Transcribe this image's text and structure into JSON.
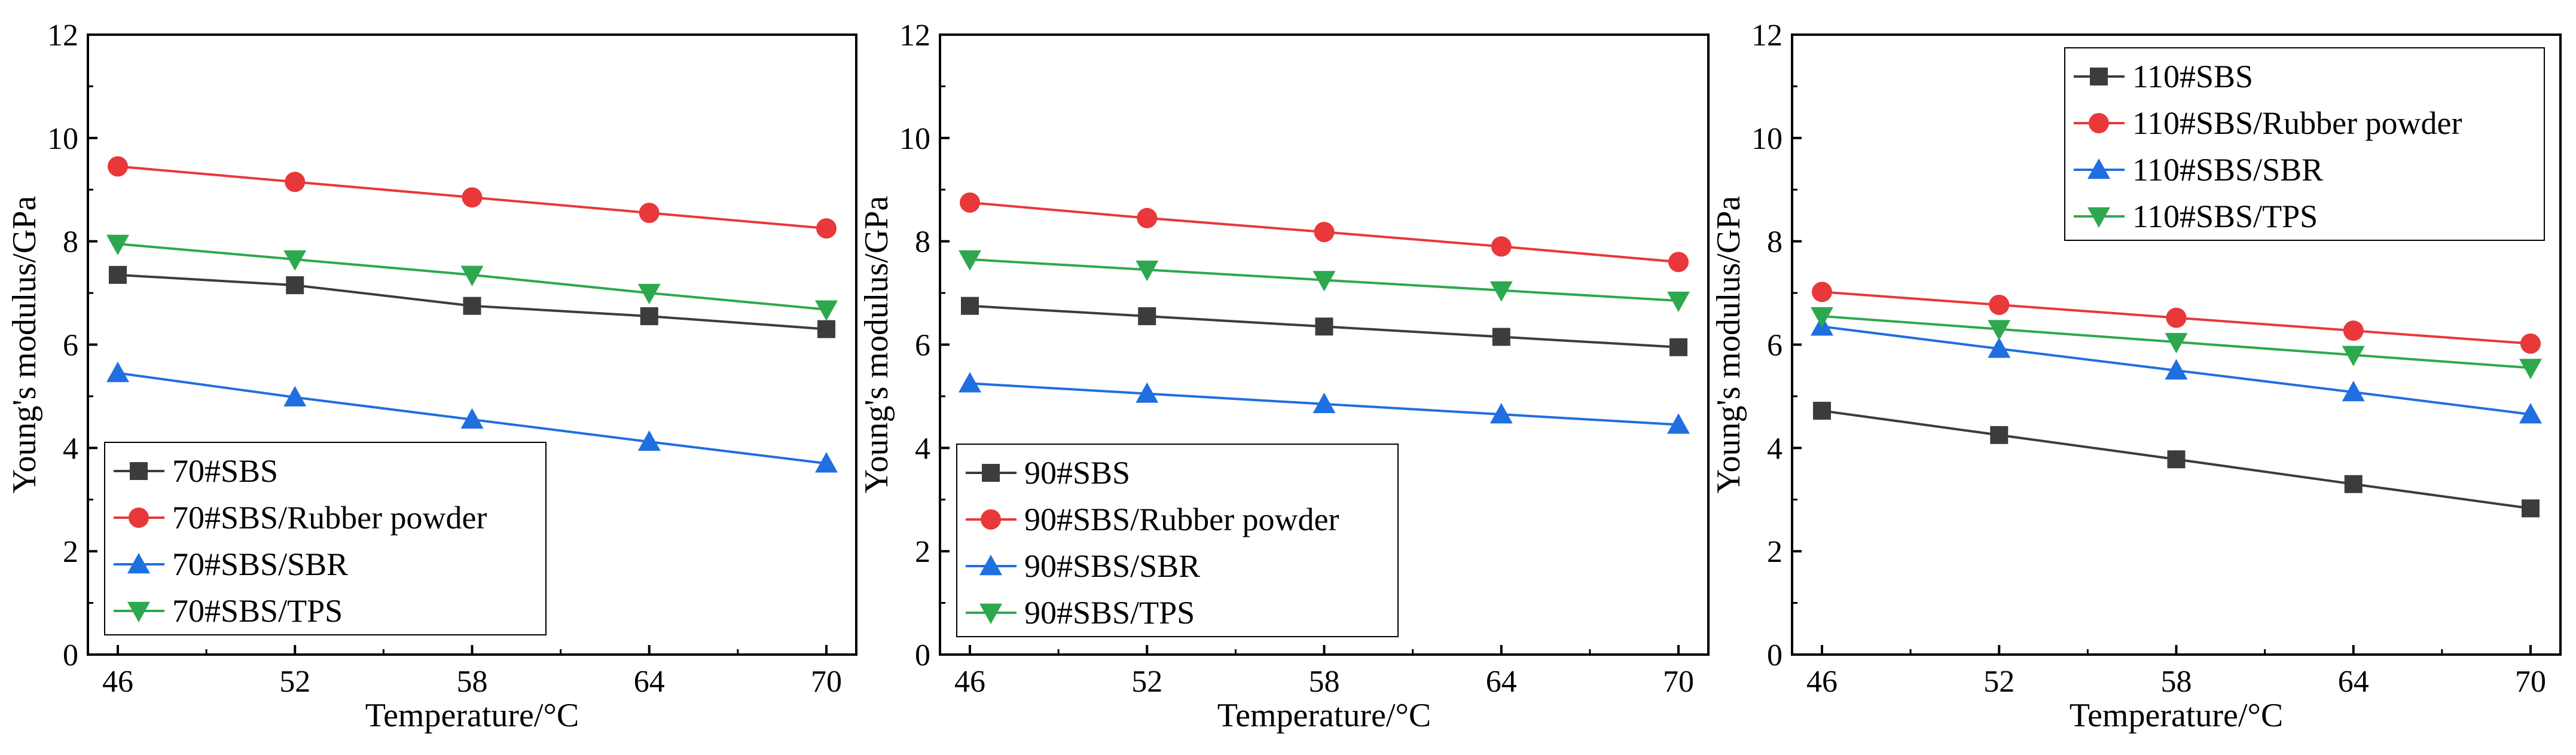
{
  "chart_data": [
    {
      "type": "line",
      "xlabel": "Temperature/°C",
      "ylabel": "Young's modulus/GPa",
      "xlim": [
        46,
        70
      ],
      "ylim": [
        0,
        12
      ],
      "x_ticks": [
        46,
        52,
        58,
        64,
        70
      ],
      "y_ticks": [
        0,
        2,
        4,
        6,
        8,
        10,
        12
      ],
      "legend_position": "bottom-left",
      "x": [
        46,
        52,
        58,
        64,
        70
      ],
      "series": [
        {
          "name": "70#SBS",
          "color": "#3c3c3c",
          "marker": "square",
          "values": [
            7.35,
            7.15,
            6.75,
            6.55,
            6.3
          ]
        },
        {
          "name": "70#SBS/Rubber powder",
          "color": "#e8383a",
          "marker": "circle",
          "values": [
            9.45,
            9.15,
            8.85,
            8.55,
            8.25
          ]
        },
        {
          "name": "70#SBS/SBR",
          "color": "#1f6fe0",
          "marker": "triangle-up",
          "values": [
            5.45,
            4.98,
            4.55,
            4.12,
            3.7
          ]
        },
        {
          "name": "70#SBS/TPS",
          "color": "#2ea84e",
          "marker": "triangle-down",
          "values": [
            7.95,
            7.65,
            7.35,
            7.0,
            6.68
          ]
        }
      ]
    },
    {
      "type": "line",
      "xlabel": "Temperature/°C",
      "ylabel": "Young's modulus/GPa",
      "xlim": [
        46,
        70
      ],
      "ylim": [
        0,
        12
      ],
      "x_ticks": [
        46,
        52,
        58,
        64,
        70
      ],
      "y_ticks": [
        0,
        2,
        4,
        6,
        8,
        10,
        12
      ],
      "legend_position": "bottom-left",
      "x": [
        46,
        52,
        58,
        64,
        70
      ],
      "series": [
        {
          "name": "90#SBS",
          "color": "#3c3c3c",
          "marker": "square",
          "values": [
            6.75,
            6.55,
            6.35,
            6.15,
            5.95
          ]
        },
        {
          "name": "90#SBS/Rubber powder",
          "color": "#e8383a",
          "marker": "circle",
          "values": [
            8.75,
            8.45,
            8.18,
            7.9,
            7.6
          ]
        },
        {
          "name": "90#SBS/SBR",
          "color": "#1f6fe0",
          "marker": "triangle-up",
          "values": [
            5.25,
            5.05,
            4.85,
            4.65,
            4.45
          ]
        },
        {
          "name": "90#SBS/TPS",
          "color": "#2ea84e",
          "marker": "triangle-down",
          "values": [
            7.65,
            7.45,
            7.25,
            7.05,
            6.85
          ]
        }
      ]
    },
    {
      "type": "line",
      "xlabel": "Temperature/°C",
      "ylabel": "Young's modulus/GPa",
      "xlim": [
        46,
        70
      ],
      "ylim": [
        0,
        12
      ],
      "x_ticks": [
        46,
        52,
        58,
        64,
        70
      ],
      "y_ticks": [
        0,
        2,
        4,
        6,
        8,
        10,
        12
      ],
      "legend_position": "top-right",
      "x": [
        46,
        52,
        58,
        64,
        70
      ],
      "series": [
        {
          "name": "110#SBS",
          "color": "#3c3c3c",
          "marker": "square",
          "values": [
            4.72,
            4.25,
            3.78,
            3.3,
            2.83
          ]
        },
        {
          "name": "110#SBS/Rubber powder",
          "color": "#e8383a",
          "marker": "circle",
          "values": [
            7.02,
            6.77,
            6.52,
            6.27,
            6.02
          ]
        },
        {
          "name": "110#SBS/SBR",
          "color": "#1f6fe0",
          "marker": "triangle-up",
          "values": [
            6.35,
            5.92,
            5.5,
            5.08,
            4.65
          ]
        },
        {
          "name": "110#SBS/TPS",
          "color": "#2ea84e",
          "marker": "triangle-down",
          "values": [
            6.55,
            6.3,
            6.05,
            5.8,
            5.55
          ]
        }
      ]
    }
  ]
}
